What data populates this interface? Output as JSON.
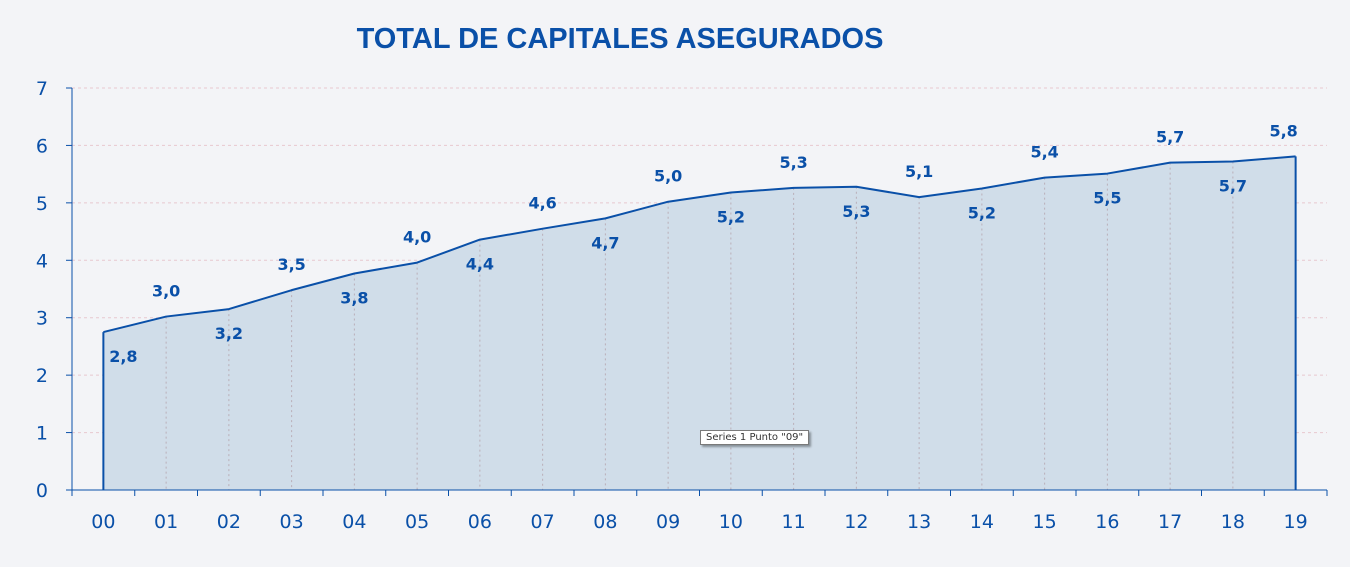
{
  "chart_data": {
    "type": "area",
    "title": "TOTAL DE CAPITALES ASEGURADOS",
    "categories": [
      "00",
      "01",
      "02",
      "03",
      "04",
      "05",
      "06",
      "07",
      "08",
      "09",
      "10",
      "11",
      "12",
      "13",
      "14",
      "15",
      "16",
      "17",
      "18",
      "19"
    ],
    "values": [
      2.75,
      3.02,
      3.15,
      3.48,
      3.77,
      3.96,
      4.36,
      4.55,
      4.73,
      5.02,
      5.18,
      5.26,
      5.28,
      5.1,
      5.25,
      5.44,
      5.51,
      5.7,
      5.72,
      5.81
    ],
    "data_labels": [
      "2,8",
      "3,0",
      "3,2",
      "3,5",
      "3,8",
      "4,0",
      "4,4",
      "4,6",
      "4,7",
      "5,0",
      "5,2",
      "5,3",
      "5,3",
      "5,1",
      "5,2",
      "5,4",
      "5,5",
      "5,7",
      "5,7",
      "5,8"
    ],
    "ylim": [
      0,
      7
    ],
    "yticks": [
      "0",
      "1",
      "2",
      "3",
      "4",
      "5",
      "6",
      "7"
    ],
    "xlabel": "",
    "ylabel": "",
    "grid": true,
    "legend": "none",
    "colors": {
      "line": "#0a50a8",
      "fill": "#d0dde9",
      "text": "#0a50a8",
      "grid": "#e8c8cf"
    }
  },
  "tooltip": {
    "text": "Series 1 Punto \"09\""
  }
}
